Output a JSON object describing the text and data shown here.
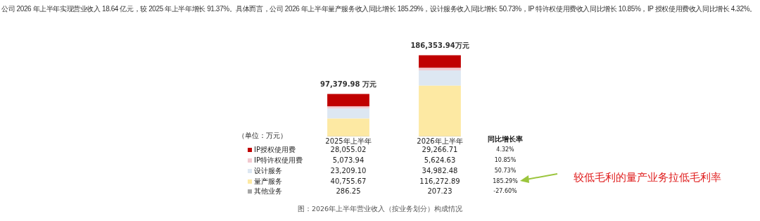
{
  "chart_data": {
    "type": "bar",
    "stacked": true,
    "legend": "bottom",
    "title": "公司 2026 年上半年实现营业收入 18.64 亿元，较 2025 年上半年增长 91.37%。具体而言，公司 2026 年上半年量产服务收入同比增长 185.29%，设计服务收入同比增长 50.73%，IP 特许权使用费收入同比增长 10.85%，IP 授权使用费收入同比增长 4.32%。",
    "categories": [
      "2025年上半年",
      "2026年上半年"
    ],
    "series": [
      {
        "name": "其他业务",
        "color": "#a6a6a6",
        "values": [
          286.25,
          207.23
        ],
        "value_labels": [
          "286.25",
          "207.23"
        ]
      },
      {
        "name": "量产服务",
        "color": "#fde9a3",
        "values": [
          40755.67,
          116272.89
        ],
        "value_labels": [
          "40,755.67",
          "116,272.89"
        ]
      },
      {
        "name": "设计服务",
        "color": "#dde7f2",
        "values": [
          23209.1,
          34982.48
        ],
        "value_labels": [
          "23,209.10",
          "34,982.48"
        ]
      },
      {
        "name": "IP特许权使用费",
        "color": "#f2c9cf",
        "values": [
          5073.94,
          5624.63
        ],
        "value_labels": [
          "5,073.94",
          "5,624.63"
        ]
      },
      {
        "name": "IP授权使用费",
        "color": "#c00000",
        "values": [
          28055.02,
          29266.71
        ],
        "value_labels": [
          "28,055.02",
          "29,266.71"
        ]
      }
    ],
    "totals": [
      "97,379.98 万元",
      "186,353.94万元"
    ],
    "annotations": [
      "（单位：万元）",
      "同比增长率",
      "-27.60%",
      "185.29%",
      "50.73%",
      "10.85%",
      "4.32%",
      "较低毛利的量产业务拉低毛利率",
      "图：2026年上半年营业收入（按业务划分）构成情况"
    ]
  }
}
